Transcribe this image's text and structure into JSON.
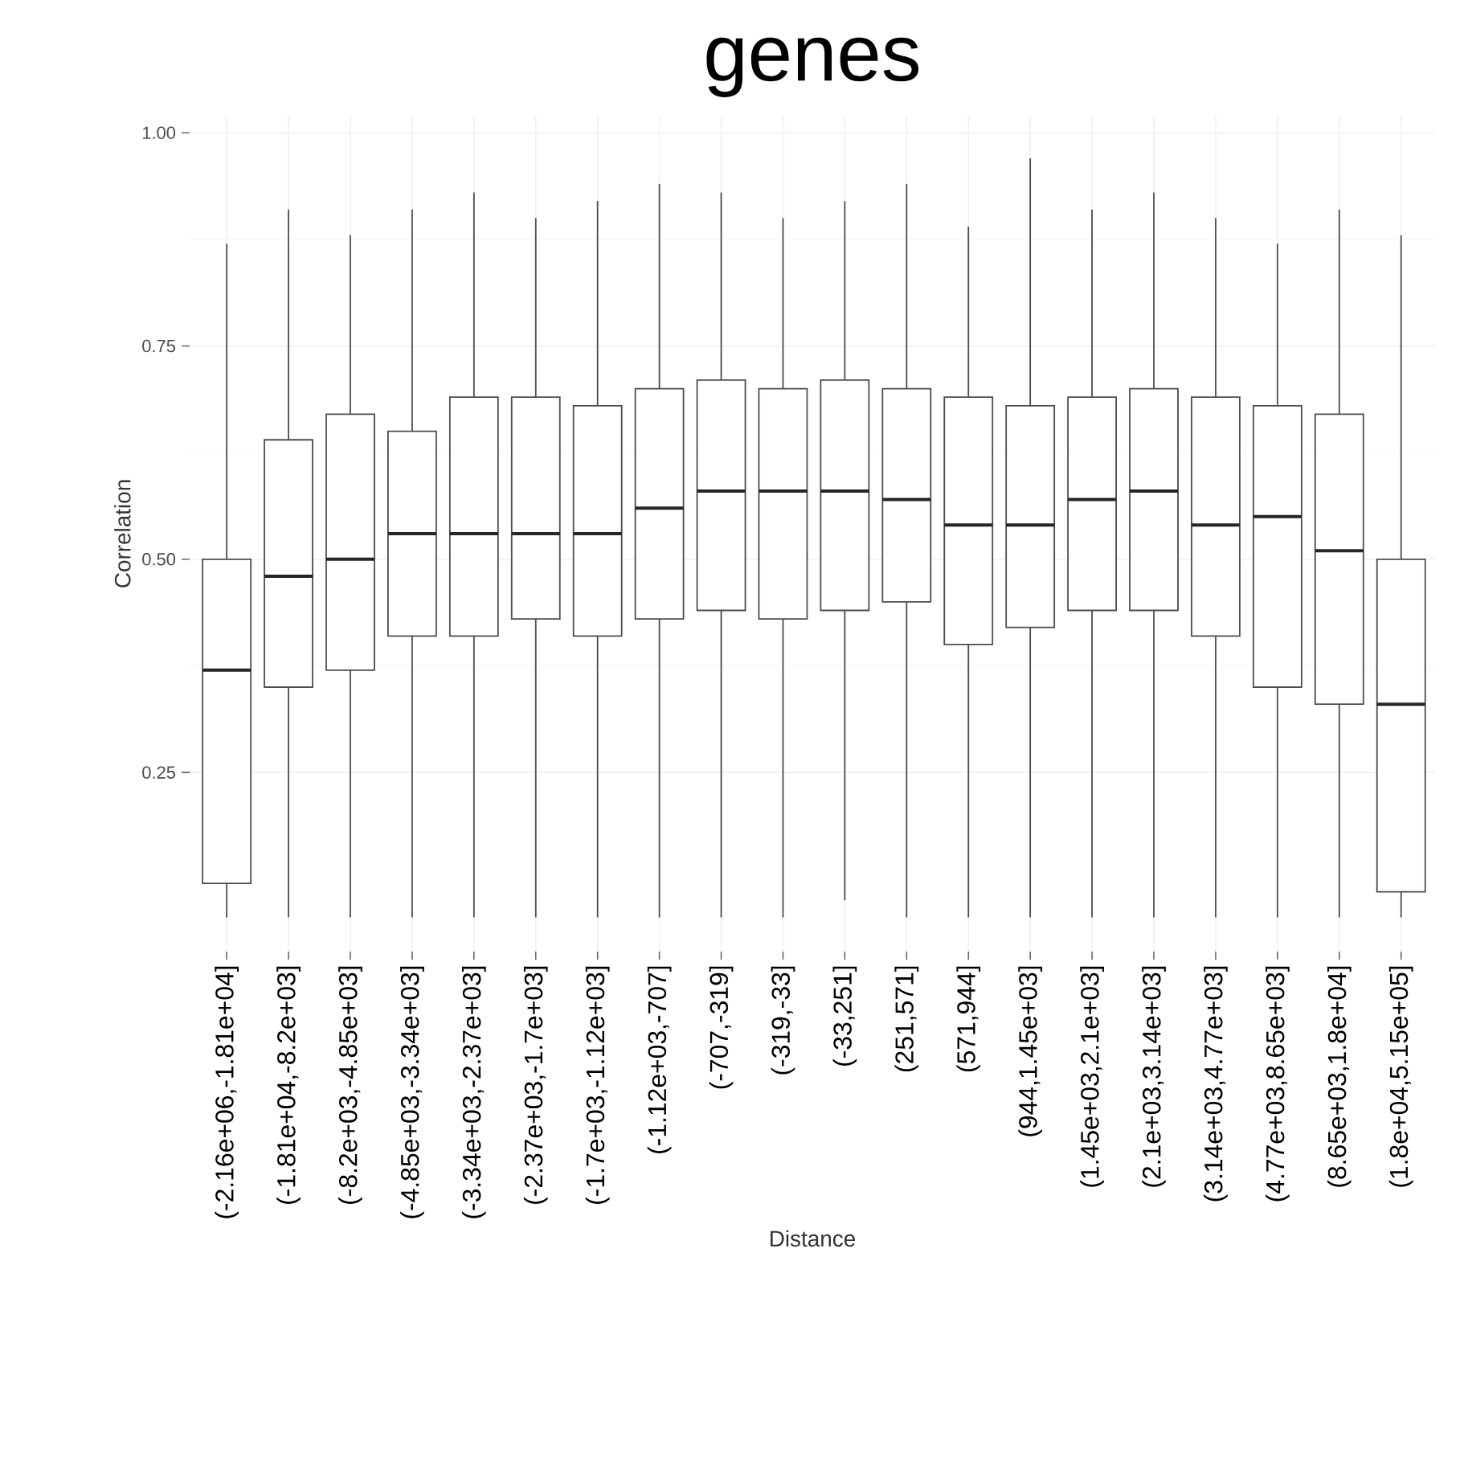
{
  "chart_data": {
    "type": "box",
    "title": "genes",
    "xlabel": "Distance",
    "ylabel": "Correlation",
    "categories": [
      "(-2.16e+06,-1.81e+04]",
      "(-1.81e+04,-8.2e+03]",
      "(-8.2e+03,-4.85e+03]",
      "(-4.85e+03,-3.34e+03]",
      "(-3.34e+03,-2.37e+03]",
      "(-2.37e+03,-1.7e+03]",
      "(-1.7e+03,-1.12e+03]",
      "(-1.12e+03,-707]",
      "(-707,-319]",
      "(-319,-33]",
      "(-33,251]",
      "(251,571]",
      "(571,944]",
      "(944,1.45e+03]",
      "(1.45e+03,2.1e+03]",
      "(2.1e+03,3.14e+03]",
      "(3.14e+03,4.77e+03]",
      "(4.77e+03,8.65e+03]",
      "(8.65e+03,1.8e+04]",
      "(1.8e+04,5.15e+05]"
    ],
    "boxes": [
      {
        "low": 0.08,
        "q1": 0.12,
        "median": 0.37,
        "q3": 0.5,
        "high": 0.87
      },
      {
        "low": 0.08,
        "q1": 0.35,
        "median": 0.48,
        "q3": 0.64,
        "high": 0.91
      },
      {
        "low": 0.08,
        "q1": 0.37,
        "median": 0.5,
        "q3": 0.67,
        "high": 0.88
      },
      {
        "low": 0.08,
        "q1": 0.41,
        "median": 0.53,
        "q3": 0.65,
        "high": 0.91
      },
      {
        "low": 0.08,
        "q1": 0.41,
        "median": 0.53,
        "q3": 0.69,
        "high": 0.93
      },
      {
        "low": 0.08,
        "q1": 0.43,
        "median": 0.53,
        "q3": 0.69,
        "high": 0.9
      },
      {
        "low": 0.08,
        "q1": 0.41,
        "median": 0.53,
        "q3": 0.68,
        "high": 0.92
      },
      {
        "low": 0.08,
        "q1": 0.43,
        "median": 0.56,
        "q3": 0.7,
        "high": 0.94
      },
      {
        "low": 0.08,
        "q1": 0.44,
        "median": 0.58,
        "q3": 0.71,
        "high": 0.93
      },
      {
        "low": 0.08,
        "q1": 0.43,
        "median": 0.58,
        "q3": 0.7,
        "high": 0.9
      },
      {
        "low": 0.1,
        "q1": 0.44,
        "median": 0.58,
        "q3": 0.71,
        "high": 0.92
      },
      {
        "low": 0.08,
        "q1": 0.45,
        "median": 0.57,
        "q3": 0.7,
        "high": 0.94
      },
      {
        "low": 0.08,
        "q1": 0.4,
        "median": 0.54,
        "q3": 0.69,
        "high": 0.89
      },
      {
        "low": 0.08,
        "q1": 0.42,
        "median": 0.54,
        "q3": 0.68,
        "high": 0.97
      },
      {
        "low": 0.08,
        "q1": 0.44,
        "median": 0.57,
        "q3": 0.69,
        "high": 0.91
      },
      {
        "low": 0.08,
        "q1": 0.44,
        "median": 0.58,
        "q3": 0.7,
        "high": 0.93
      },
      {
        "low": 0.08,
        "q1": 0.41,
        "median": 0.54,
        "q3": 0.69,
        "high": 0.9
      },
      {
        "low": 0.08,
        "q1": 0.35,
        "median": 0.55,
        "q3": 0.68,
        "high": 0.87
      },
      {
        "low": 0.08,
        "q1": 0.33,
        "median": 0.51,
        "q3": 0.67,
        "high": 0.91
      },
      {
        "low": 0.08,
        "q1": 0.11,
        "median": 0.33,
        "q3": 0.5,
        "high": 0.88
      }
    ],
    "ylim": [
      0.04,
      1.02
    ],
    "yticks": [
      {
        "value": 0.25,
        "label": "0.25"
      },
      {
        "value": 0.5,
        "label": "0.50"
      },
      {
        "value": 0.75,
        "label": "0.75"
      },
      {
        "value": 1.0,
        "label": "1.00"
      }
    ],
    "grid": true
  }
}
